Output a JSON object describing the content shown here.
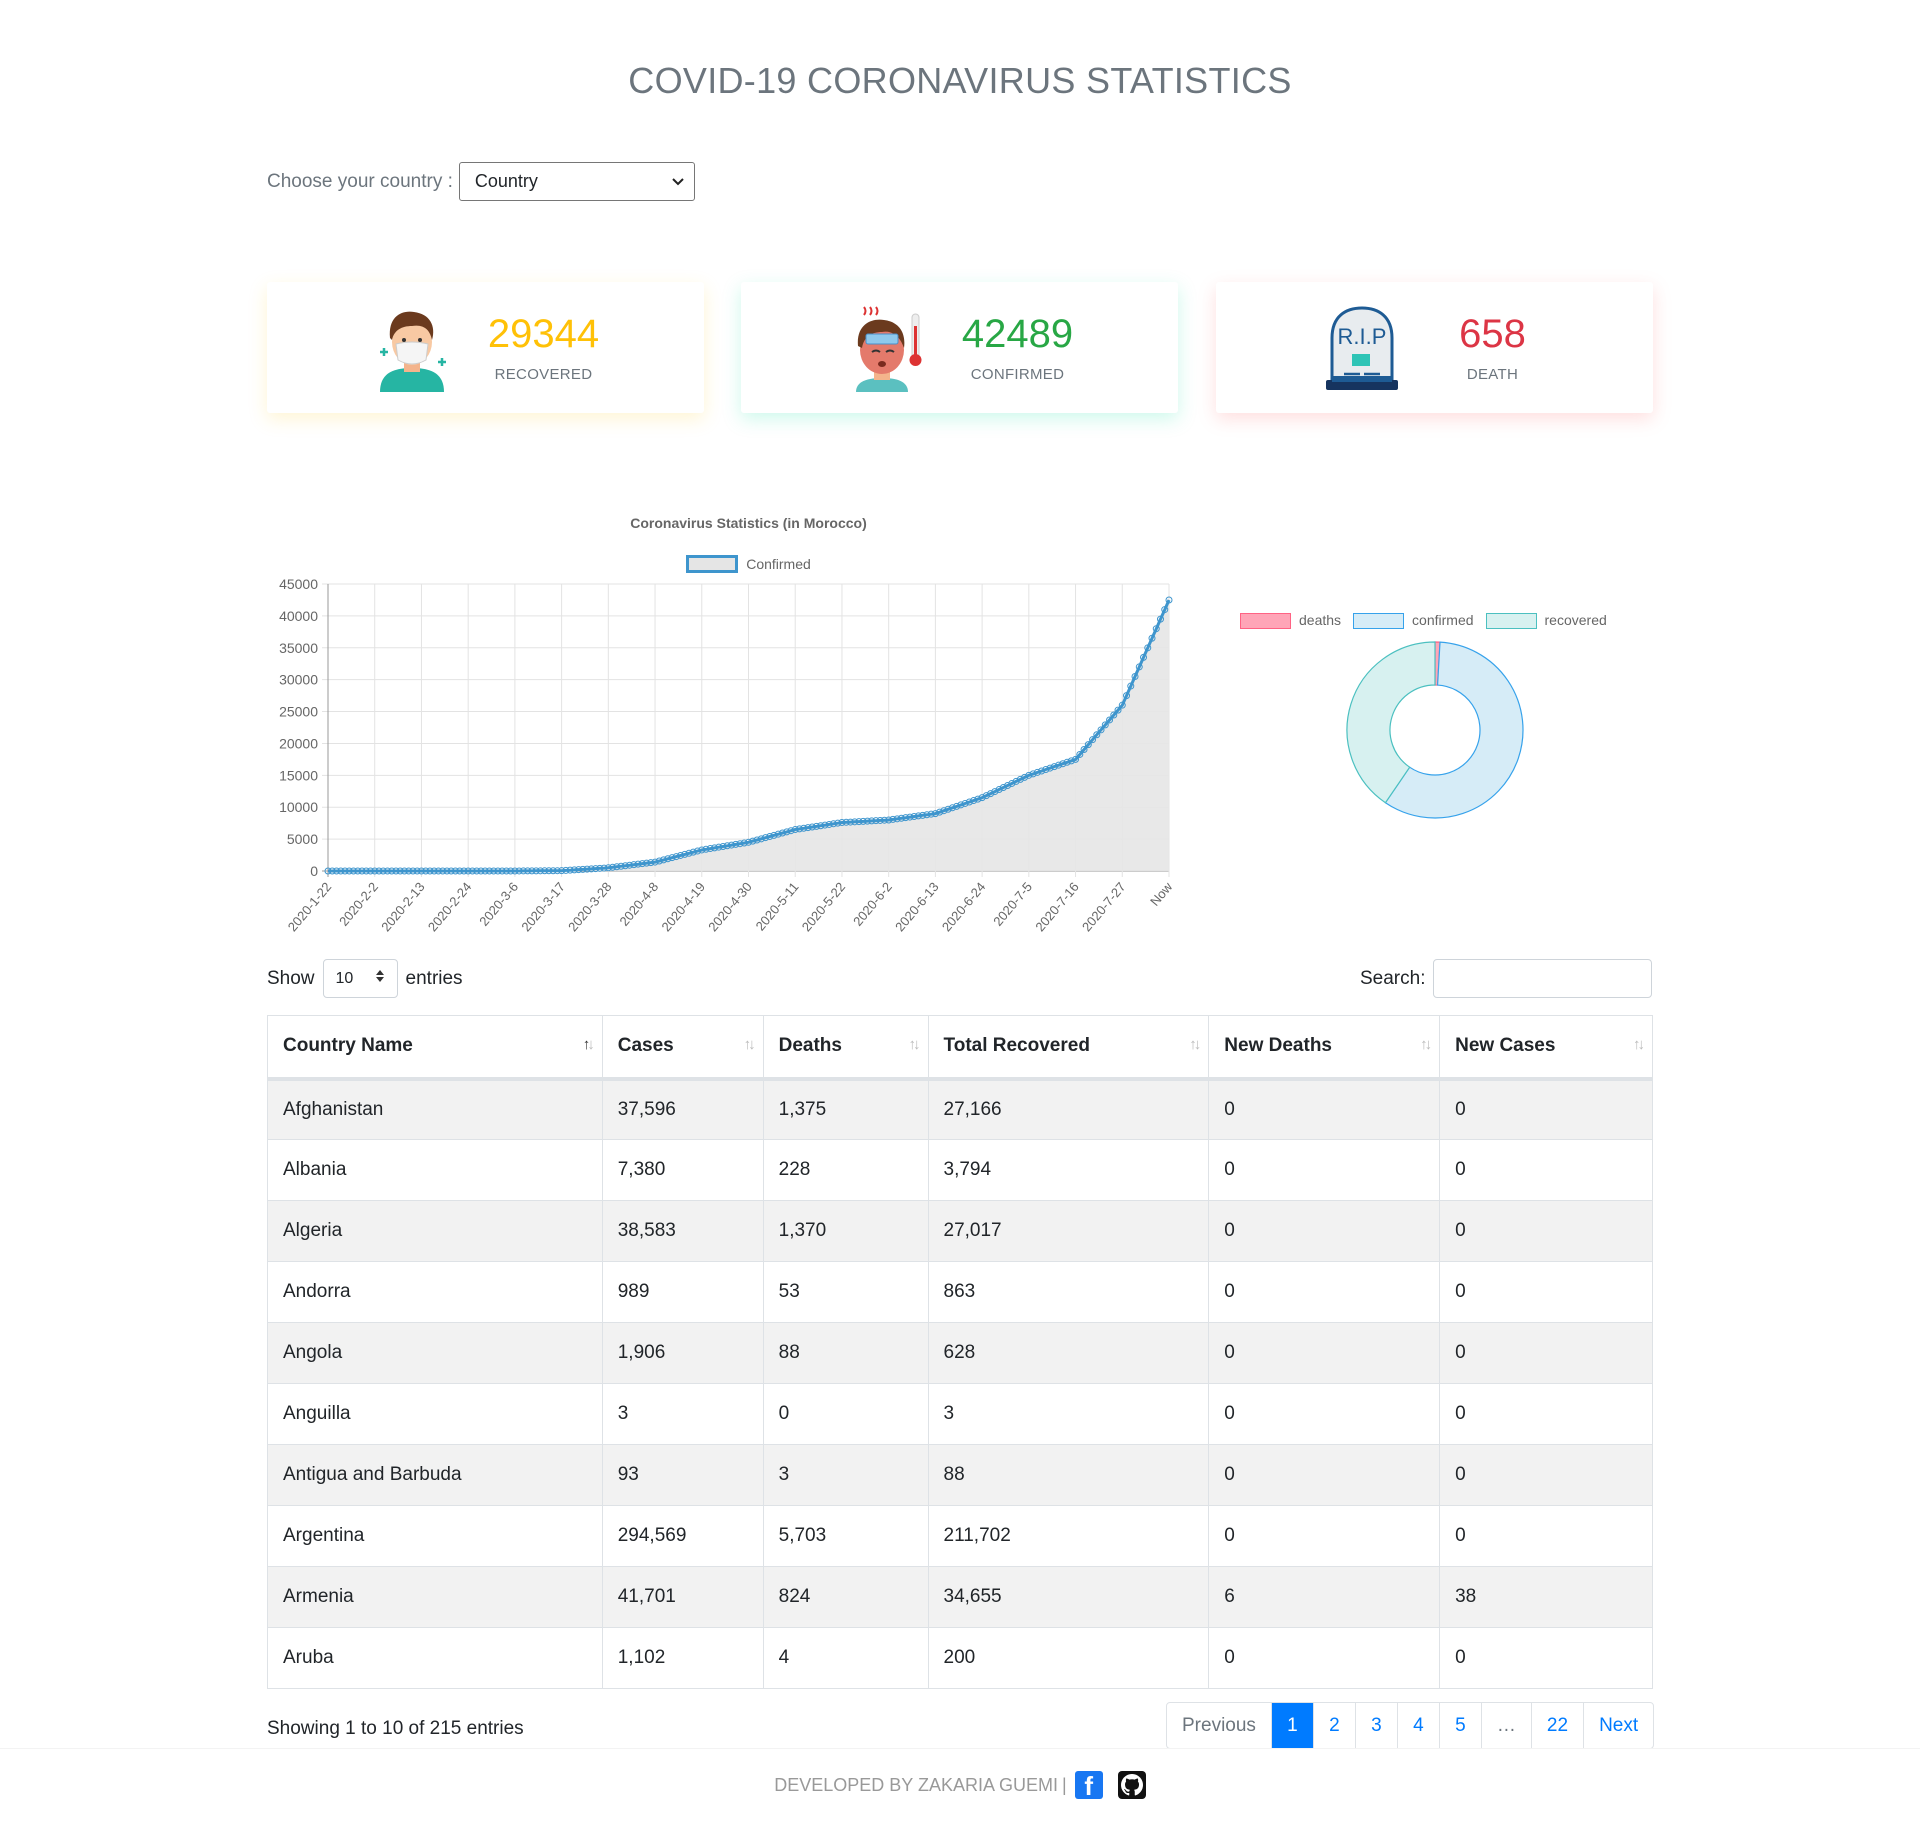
{
  "header": {
    "title": "COVID-19 CORONAVIRUS STATISTICS"
  },
  "country_picker": {
    "label": "Choose your country :",
    "selected": "Country"
  },
  "cards": [
    {
      "value": "29344",
      "label": "RECOVERED",
      "icon": "masked-person-icon",
      "color": "#ffc107"
    },
    {
      "value": "42489",
      "label": "CONFIRMED",
      "icon": "feverish-person-icon",
      "color": "#28a745"
    },
    {
      "value": "658",
      "label": "DEATH",
      "icon": "tombstone-rip-icon",
      "color": "#dc3545"
    }
  ],
  "chart_data": [
    {
      "type": "line",
      "title": "Coronavirus Statistics (in Morocco)",
      "legend": [
        "Confirmed"
      ],
      "xlabel": "",
      "ylabel": "",
      "ylim": [
        0,
        45000
      ],
      "yticks": [
        0,
        5000,
        10000,
        15000,
        20000,
        25000,
        30000,
        35000,
        40000,
        45000
      ],
      "grid": true,
      "x": [
        "2020-1-22",
        "2020-2-2",
        "2020-2-13",
        "2020-2-24",
        "2020-3-6",
        "2020-3-17",
        "2020-3-28",
        "2020-4-8",
        "2020-4-19",
        "2020-4-30",
        "2020-5-11",
        "2020-5-22",
        "2020-6-2",
        "2020-6-13",
        "2020-6-24",
        "2020-7-5",
        "2020-7-16",
        "2020-7-27",
        "Now"
      ],
      "series": [
        {
          "name": "Confirmed",
          "color": "#3e95cd",
          "fill": "#e5e5e5",
          "values": [
            0,
            0,
            0,
            0,
            2,
            50,
            500,
            1400,
            3300,
            4500,
            6500,
            7600,
            8000,
            9000,
            11500,
            15000,
            17500,
            26000,
            42489
          ]
        }
      ]
    },
    {
      "type": "pie",
      "variant": "doughnut",
      "legend": [
        "deaths",
        "confirmed",
        "recovered"
      ],
      "categories": [
        "deaths",
        "confirmed",
        "recovered"
      ],
      "values": [
        658,
        42489,
        29344
      ],
      "colors": [
        "#ffa5b7",
        "#d6ecf7",
        "#d7f1f0"
      ],
      "borders": [
        "#ff6384",
        "#36a2eb",
        "#4bc0c0"
      ]
    }
  ],
  "table_controls": {
    "show_label": "Show",
    "entries_value": "10",
    "entries_label": "entries",
    "search_label": "Search:",
    "search_value": ""
  },
  "table": {
    "columns": [
      "Country Name",
      "Cases",
      "Deaths",
      "Total Recovered",
      "New Deaths",
      "New Cases"
    ],
    "rows": [
      [
        "Afghanistan",
        "37,596",
        "1,375",
        "27,166",
        "0",
        "0"
      ],
      [
        "Albania",
        "7,380",
        "228",
        "3,794",
        "0",
        "0"
      ],
      [
        "Algeria",
        "38,583",
        "1,370",
        "27,017",
        "0",
        "0"
      ],
      [
        "Andorra",
        "989",
        "53",
        "863",
        "0",
        "0"
      ],
      [
        "Angola",
        "1,906",
        "88",
        "628",
        "0",
        "0"
      ],
      [
        "Anguilla",
        "3",
        "0",
        "3",
        "0",
        "0"
      ],
      [
        "Antigua and Barbuda",
        "93",
        "3",
        "88",
        "0",
        "0"
      ],
      [
        "Argentina",
        "294,569",
        "5,703",
        "211,702",
        "0",
        "0"
      ],
      [
        "Armenia",
        "41,701",
        "824",
        "34,655",
        "6",
        "38"
      ],
      [
        "Aruba",
        "1,102",
        "4",
        "200",
        "0",
        "0"
      ]
    ]
  },
  "pagination": {
    "info": "Showing 1 to 10 of 215 entries",
    "previous": "Previous",
    "pages": [
      "1",
      "2",
      "3",
      "4",
      "5",
      "…",
      "22"
    ],
    "active": "1",
    "next": "Next"
  },
  "footer": {
    "text": "DEVELOPED BY ZAKARIA GUEMI",
    "separator": "|"
  }
}
